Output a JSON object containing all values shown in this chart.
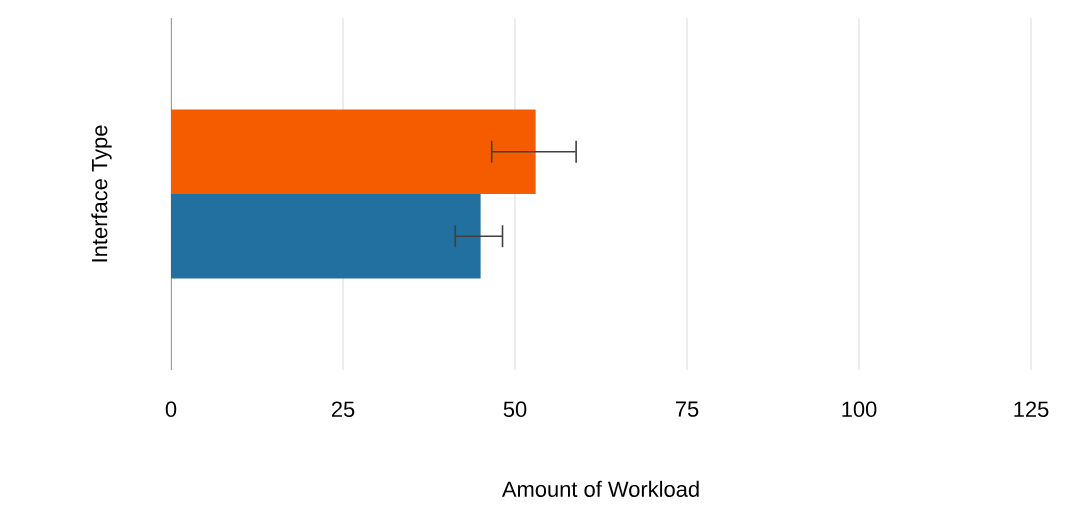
{
  "chart_data": {
    "type": "bar",
    "orientation": "horizontal",
    "xlabel": "Amount of Workload",
    "ylabel": "Interface Type",
    "categories": [
      null
    ],
    "series": [
      {
        "color": "#f55c00",
        "values": [
          53
        ],
        "errors": [
          [
            46.5,
            59
          ]
        ]
      },
      {
        "color": "#22709f",
        "values": [
          45
        ],
        "errors": [
          [
            41.2,
            48.3
          ]
        ]
      }
    ],
    "xlim": [
      0,
      125
    ],
    "xticks": [
      0,
      25,
      50,
      75,
      100,
      125
    ],
    "grid": "x"
  }
}
